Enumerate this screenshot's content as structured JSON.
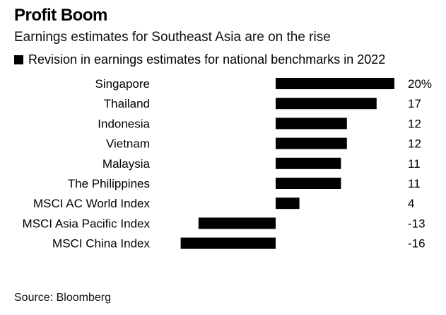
{
  "header": {
    "title": "Profit Boom",
    "subtitle": "Earnings estimates for Southeast Asia are on the rise",
    "legend_label": "Revision in earnings estimates for national benchmarks in 2022"
  },
  "footer": {
    "source": "Source: Bloomberg"
  },
  "colors": {
    "bar": "#000000",
    "text": "#000000"
  },
  "chart_data": {
    "type": "bar",
    "orientation": "horizontal",
    "title": "Profit Boom",
    "subtitle": "Earnings estimates for Southeast Asia are on the rise",
    "legend": [
      "Revision in earnings estimates for national benchmarks in 2022"
    ],
    "categories": [
      "Singapore",
      "Thailand",
      "Indonesia",
      "Vietnam",
      "Malaysia",
      "The Philippines",
      "MSCI AC World Index",
      "MSCI Asia Pacific Index",
      "MSCI China Index"
    ],
    "values": [
      20,
      17,
      12,
      12,
      11,
      11,
      4,
      -13,
      -16
    ],
    "value_labels": [
      "20%",
      "17",
      "12",
      "12",
      "11",
      "11",
      "4",
      "-13",
      "-16"
    ],
    "xlim": [
      -16,
      20
    ],
    "unit": "%",
    "grid": false
  }
}
